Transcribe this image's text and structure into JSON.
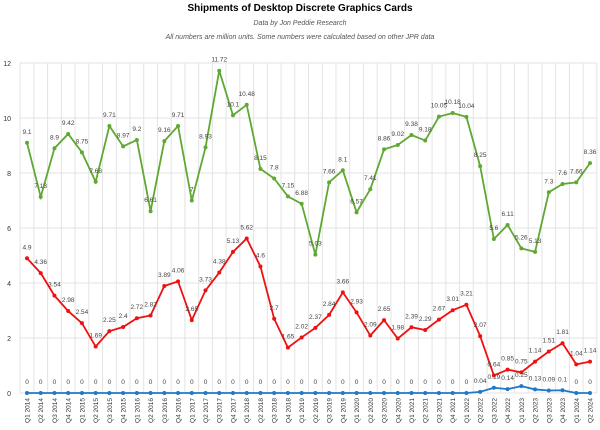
{
  "chart_data": {
    "type": "line",
    "title": "Shipments of Desktop Discrete Graphics Cards",
    "subtitle": "Data by Jon Peddie Research",
    "note": "All numbers are million units. Some numbers were calculated based on other JPR data",
    "xlabel": "",
    "ylabel": "",
    "ylim": [
      0,
      12
    ],
    "yticks": [
      0,
      2,
      4,
      6,
      8,
      10,
      12
    ],
    "grid": true,
    "legend": "none",
    "categories": [
      "Q1 2014",
      "Q2 2014",
      "Q3 2014",
      "Q4 2014",
      "Q1 2015",
      "Q2 2015",
      "Q3 2015",
      "Q4 2015",
      "Q1 2016",
      "Q2 2016",
      "Q3 2016",
      "Q4 2016",
      "Q1 2017",
      "Q2 2017",
      "Q3 2017",
      "Q4 2017",
      "Q1 2018",
      "Q2 2018",
      "Q3 2018",
      "Q4 2018",
      "Q1 2019",
      "Q2 2019",
      "Q3 2019",
      "Q4 2019",
      "Q1 2020",
      "Q2 2020",
      "Q3 2020",
      "Q4 2020",
      "Q1 2021",
      "Q2 2021",
      "Q3 2021",
      "Q4 2021",
      "Q1 2022",
      "Q2 2022",
      "Q3 2022",
      "Q4 2022",
      "Q1 2023",
      "Q2 2023",
      "Q3 2023",
      "Q4 2023",
      "Q1 2024",
      "Q2 2024"
    ],
    "series": [
      {
        "color": "#5fa832",
        "values": [
          9.1,
          7.13,
          8.9,
          9.42,
          8.75,
          7.68,
          9.71,
          8.97,
          9.2,
          6.61,
          9.16,
          9.71,
          7,
          8.93,
          11.72,
          10.1,
          10.48,
          8.15,
          7.8,
          7.15,
          6.88,
          5.03,
          7.66,
          8.1,
          6.57,
          7.41,
          8.86,
          9.02,
          9.38,
          9.18,
          10.05,
          10.18,
          10.04,
          8.25,
          5.6,
          6.11,
          5.26,
          5.13,
          7.3,
          7.6,
          7.66,
          8.36
        ]
      },
      {
        "color": "#ee1111",
        "values": [
          4.9,
          4.36,
          3.54,
          2.98,
          2.54,
          1.69,
          2.25,
          2.4,
          2.72,
          2.82,
          3.89,
          4.06,
          2.65,
          3.73,
          4.38,
          5.13,
          5.62,
          4.6,
          2.7,
          1.65,
          2.02,
          2.37,
          2.84,
          3.66,
          2.93,
          2.09,
          2.65,
          1.98,
          2.39,
          2.29,
          2.67,
          3.01,
          3.21,
          2.07,
          0.64,
          0.85,
          0.75,
          1.14,
          1.51,
          1.81,
          1.04,
          1.14
        ]
      },
      {
        "color": "#1f78c8",
        "values": [
          0,
          0,
          0,
          0,
          0,
          0,
          0,
          0,
          0,
          0,
          0,
          0,
          0,
          0,
          0,
          0,
          0,
          0,
          0,
          0,
          0,
          0,
          0,
          0,
          0,
          0,
          0,
          0,
          0,
          0,
          0,
          0,
          0,
          0.04,
          0.19,
          0.14,
          0.25,
          0.13,
          0.09,
          0.1,
          0,
          0
        ]
      }
    ]
  }
}
